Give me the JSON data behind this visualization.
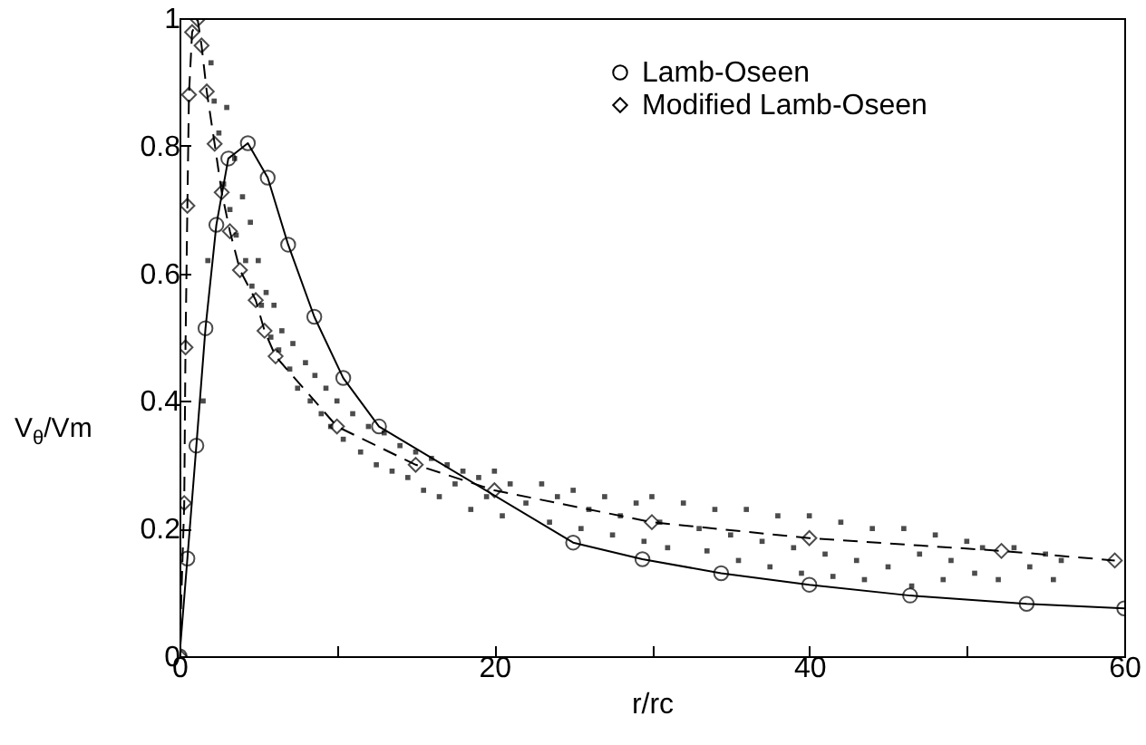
{
  "chart_data": {
    "type": "line",
    "xlabel": "r/rc",
    "ylabel": "V$_{θ}$/Vm",
    "xlim": [
      0,
      60
    ],
    "xticks": [
      0,
      {
        "value": 10,
        "label": null
      },
      20,
      {
        "value": 30,
        "label": null
      },
      40,
      {
        "value": 50,
        "label": null
      },
      60
    ],
    "ylim": [
      0,
      1
    ],
    "yticks": [
      0,
      0.2,
      0.4,
      0.6,
      0.8,
      1
    ],
    "legend": "top right",
    "grid": false,
    "series": [
      {
        "name": "Lamb-Oseen",
        "color": "#000000",
        "marker": "circle",
        "line_style": "solid",
        "x": [
          0,
          0.5,
          1.07,
          1.65,
          2.34,
          3.1,
          4.34,
          5.6,
          6.9,
          8.56,
          10.4,
          12.67,
          25,
          29.4,
          34.4,
          40,
          46.4,
          53.8,
          60
        ],
        "values": [
          0,
          0.153,
          0.33,
          0.514,
          0.676,
          0.78,
          0.804,
          0.75,
          0.645,
          0.532,
          0.436,
          0.36,
          0.178,
          0.152,
          0.13,
          0.112,
          0.095,
          0.082,
          0.075
        ]
      },
      {
        "name": "Modified Lamb-Oseen",
        "color": "#000000",
        "marker": "diamond",
        "line_style": "dashed",
        "x": [
          0,
          0.3,
          0.38,
          0.5,
          0.6,
          0.8,
          1.15,
          1.4,
          1.73,
          2.23,
          2.68,
          3.2,
          3.84,
          4.84,
          5.4,
          6.1,
          10,
          15,
          20,
          30,
          40,
          52.2,
          59.4
        ],
        "values": [
          0,
          0.24,
          0.484,
          0.706,
          0.88,
          0.978,
          0.998,
          0.957,
          0.885,
          0.803,
          0.727,
          0.666,
          0.605,
          0.558,
          0.51,
          0.47,
          0.36,
          0.3,
          0.26,
          0.21,
          0.185,
          0.165,
          0.15
        ]
      },
      {
        "type": "scatter",
        "color": "#000000",
        "marker": "square",
        "x": [
          1.5,
          1.8,
          2.0,
          2.2,
          2.5,
          2.8,
          3.0,
          3.2,
          3.5,
          3.6,
          4.0,
          4.2,
          4.5,
          4.6,
          5.0,
          5.2,
          5.5,
          5.8,
          6.0,
          6.3,
          6.5,
          7.0,
          7.2,
          7.5,
          8.0,
          8.3,
          8.6,
          9.0,
          9.3,
          9.6,
          10,
          10.4,
          11,
          11.5,
          12,
          12.5,
          13,
          13.5,
          14,
          14.5,
          15,
          15.5,
          16,
          16.5,
          17,
          17.5,
          18,
          18.5,
          19,
          19.5,
          20,
          20.5,
          21,
          22,
          23,
          23.5,
          24,
          25,
          25.5,
          26,
          27,
          27.5,
          28,
          29,
          29.5,
          30,
          30.5,
          31,
          32,
          33,
          33.5,
          34,
          35,
          35.5,
          36,
          37,
          37.5,
          38,
          39,
          39.5,
          40,
          41,
          41.5,
          42,
          43,
          43.5,
          44,
          45,
          46,
          46.5,
          47,
          48,
          48.5,
          49,
          50,
          50.5,
          51,
          52,
          53,
          54,
          55,
          55.5,
          56
        ],
        "values": [
          0.4,
          0.62,
          0.93,
          0.87,
          0.82,
          0.74,
          0.86,
          0.7,
          0.78,
          0.66,
          0.72,
          0.62,
          0.68,
          0.58,
          0.62,
          0.55,
          0.57,
          0.5,
          0.55,
          0.48,
          0.51,
          0.45,
          0.49,
          0.42,
          0.46,
          0.4,
          0.44,
          0.38,
          0.42,
          0.36,
          0.4,
          0.34,
          0.38,
          0.32,
          0.36,
          0.3,
          0.35,
          0.29,
          0.33,
          0.28,
          0.32,
          0.26,
          0.31,
          0.25,
          0.3,
          0.27,
          0.29,
          0.23,
          0.28,
          0.25,
          0.29,
          0.22,
          0.27,
          0.24,
          0.27,
          0.21,
          0.25,
          0.26,
          0.2,
          0.23,
          0.25,
          0.19,
          0.22,
          0.24,
          0.18,
          0.25,
          0.21,
          0.17,
          0.24,
          0.2,
          0.165,
          0.23,
          0.19,
          0.15,
          0.23,
          0.18,
          0.14,
          0.22,
          0.17,
          0.13,
          0.22,
          0.16,
          0.125,
          0.21,
          0.15,
          0.12,
          0.2,
          0.14,
          0.2,
          0.11,
          0.16,
          0.19,
          0.12,
          0.15,
          0.18,
          0.13,
          0.17,
          0.12,
          0.17,
          0.14,
          0.16,
          0.12,
          0.15
        ]
      }
    ]
  }
}
